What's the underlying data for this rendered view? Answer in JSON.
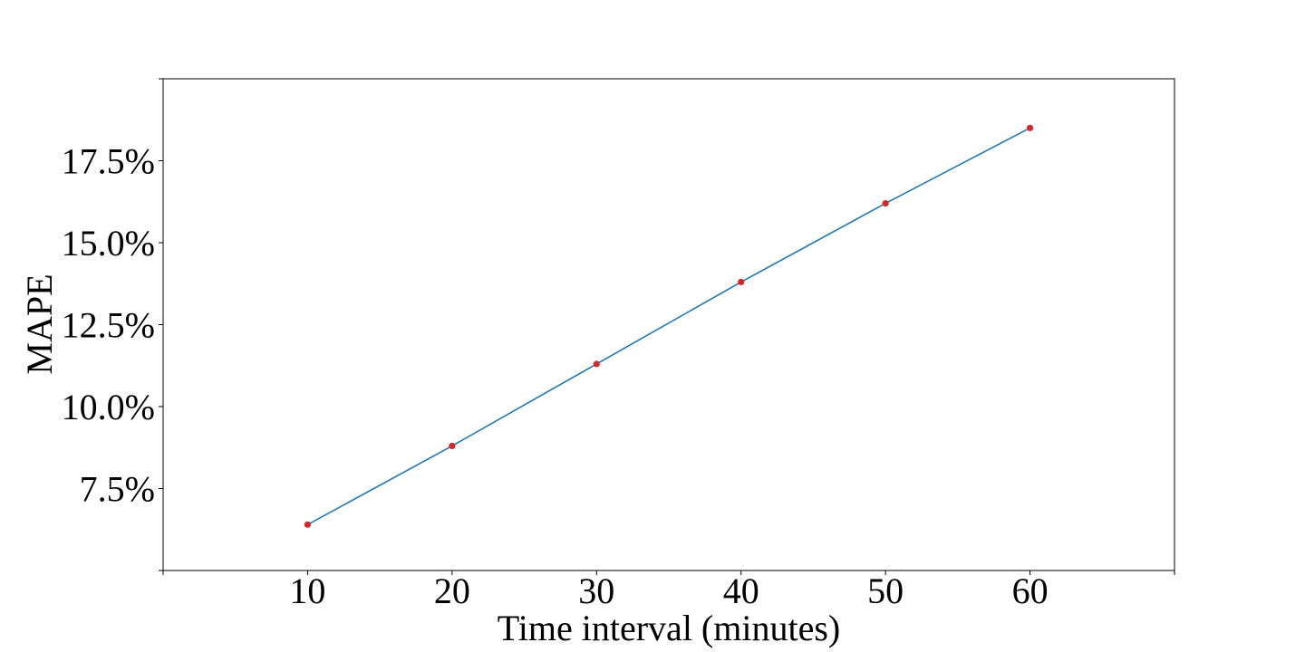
{
  "chart_data": {
    "type": "line",
    "x": [
      10,
      20,
      30,
      40,
      50,
      60
    ],
    "series": [
      {
        "values": [
          6.4,
          8.8,
          11.3,
          13.8,
          16.2,
          18.5
        ],
        "line_color": "#1f77b4",
        "marker_color": "#d62728"
      }
    ],
    "xlabel": "Time interval (minutes)",
    "ylabel": "MAPE",
    "xlim": [
      0,
      70
    ],
    "ylim": [
      5.0,
      20.0
    ],
    "xticks": [
      10,
      20,
      30,
      40,
      50,
      60
    ],
    "xtick_labels": [
      "10",
      "20",
      "30",
      "40",
      "50",
      "60"
    ],
    "yticks": [
      7.5,
      10.0,
      12.5,
      15.0,
      17.5
    ],
    "ytick_labels": [
      "7.5%",
      "10.0%",
      "12.5%",
      "15.0%",
      "17.5%"
    ],
    "grid": false
  }
}
